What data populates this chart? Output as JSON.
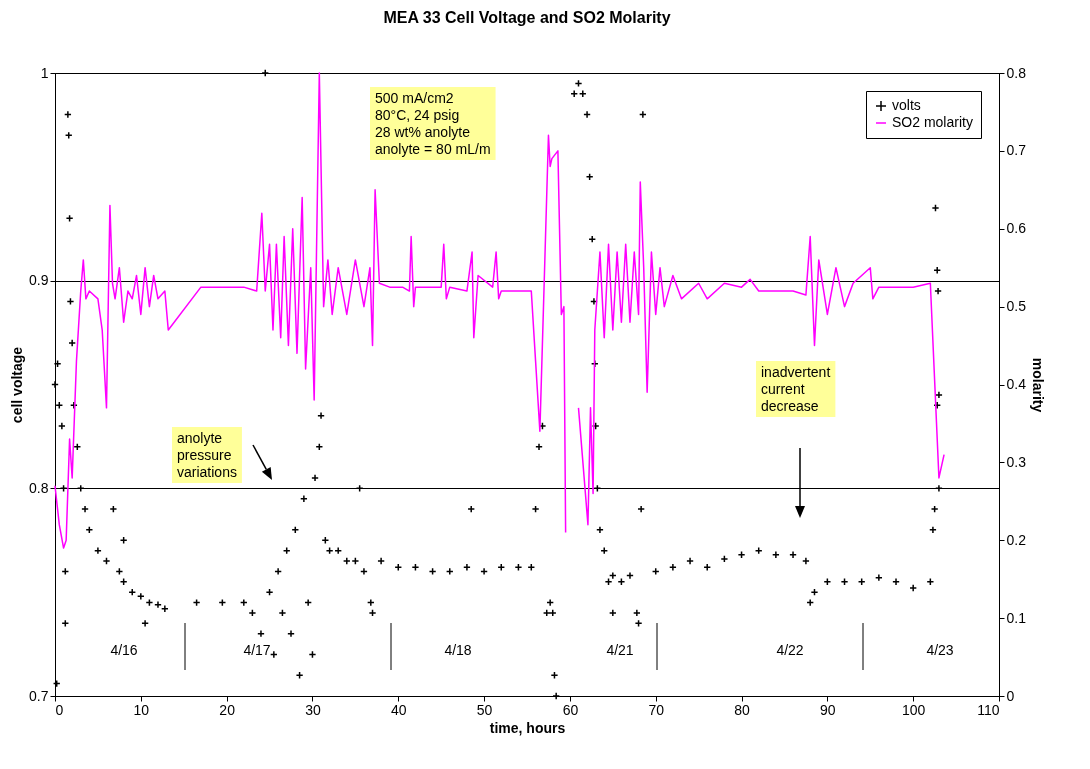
{
  "chart_data": {
    "type": "scatter",
    "title": "MEA 33 Cell Voltage and SO2 Molarity",
    "xlabel": "time, hours",
    "ylabel": "cell voltage",
    "y2label": "molarity",
    "xlim": [
      0,
      110
    ],
    "xticks": [
      0,
      10,
      20,
      30,
      40,
      50,
      60,
      70,
      80,
      90,
      100,
      110
    ],
    "ylim": [
      0.7,
      1
    ],
    "yticks": [
      0.7,
      0.8,
      0.9,
      1
    ],
    "y2lim": [
      0,
      0.8
    ],
    "y2ticks": [
      0,
      0.1,
      0.2,
      0.3,
      0.4,
      0.5,
      0.6,
      0.7,
      0.8
    ],
    "grid": "y",
    "legend": "top right",
    "series": [
      {
        "name": "volts",
        "marker": "cross",
        "color": "#000000",
        "x": [
          0.2,
          0,
          0.3,
          0.5,
          0.8,
          1.0,
          1.2,
          1.2,
          1.5,
          1.6,
          1.7,
          1.8,
          2.0,
          2.2,
          2.6,
          3,
          3.5,
          4,
          5,
          6,
          6.8,
          7.5,
          8,
          8,
          9,
          10,
          10.5,
          11,
          12,
          12.8,
          16.5,
          19.5,
          22,
          23,
          24,
          24.5,
          25,
          25.5,
          26,
          26.5,
          27,
          27.5,
          28,
          28.5,
          29,
          29.5,
          30,
          30.3,
          30.8,
          31,
          31.5,
          32,
          33,
          34,
          35,
          35.5,
          36,
          36.8,
          37,
          38,
          40,
          42,
          44,
          46,
          48,
          48.5,
          50,
          52,
          54,
          55.5,
          56,
          56.4,
          56.8,
          57.3,
          57.7,
          58,
          58.2,
          58.4,
          60.5,
          61,
          61.5,
          62,
          62.3,
          62.6,
          62.8,
          62.9,
          63,
          63.2,
          63.5,
          64,
          64.5,
          65,
          65,
          66,
          67,
          67.8,
          68,
          68.3,
          68.5,
          70,
          72,
          74,
          76,
          78,
          80,
          82,
          84,
          86,
          87.5,
          88,
          88.5,
          90,
          92,
          94,
          96,
          98,
          100,
          102,
          102.3,
          102.5,
          102.6,
          102.8,
          102.8,
          102.9,
          103,
          103
        ],
        "values": [
          0.706,
          0.85,
          0.86,
          0.84,
          0.83,
          0.8,
          0.76,
          0.735,
          0.98,
          0.97,
          0.93,
          0.89,
          0.87,
          0.84,
          0.82,
          0.8,
          0.79,
          0.78,
          0.77,
          0.765,
          0.79,
          0.76,
          0.755,
          0.775,
          0.75,
          0.748,
          0.735,
          0.745,
          0.744,
          0.742,
          0.745,
          0.745,
          0.745,
          0.74,
          0.73,
          1.0,
          0.75,
          0.72,
          0.76,
          0.74,
          0.77,
          0.73,
          0.78,
          0.71,
          0.795,
          0.745,
          0.72,
          0.805,
          0.82,
          0.835,
          0.775,
          0.77,
          0.77,
          0.765,
          0.765,
          0.8,
          0.76,
          0.745,
          0.74,
          0.765,
          0.762,
          0.762,
          0.76,
          0.76,
          0.762,
          0.79,
          0.76,
          0.762,
          0.762,
          0.762,
          0.79,
          0.82,
          0.83,
          0.74,
          0.745,
          0.74,
          0.71,
          0.7,
          0.99,
          0.995,
          0.99,
          0.98,
          0.95,
          0.92,
          0.89,
          0.86,
          0.83,
          0.8,
          0.78,
          0.77,
          0.755,
          0.758,
          0.74,
          0.755,
          0.758,
          0.74,
          0.735,
          0.79,
          0.98,
          0.76,
          0.762,
          0.765,
          0.762,
          0.766,
          0.768,
          0.77,
          0.768,
          0.768,
          0.765,
          0.745,
          0.75,
          0.755,
          0.755,
          0.755,
          0.757,
          0.755,
          0.752,
          0.755,
          0.78,
          0.79,
          0.935,
          0.84,
          0.905,
          0.895,
          0.845,
          0.8
        ]
      },
      {
        "name": "SO2 molarity",
        "type": "line",
        "axis": "y2",
        "color": "#ff00ff",
        "x": [
          0,
          0.5,
          1.0,
          1.3,
          1.7,
          2.0,
          2.5,
          3.0,
          3.3,
          3.6,
          4.0,
          5.0,
          5.5,
          6.0,
          6.2,
          6.4,
          6.7,
          7.0,
          7.5,
          8.0,
          8.5,
          9.0,
          9.5,
          10,
          10.5,
          11,
          11.5,
          12,
          12.8,
          13.2,
          17,
          22,
          23.5,
          24.1,
          24.5,
          25,
          25.4,
          25.8,
          26.3,
          26.7,
          27.2,
          27.7,
          28.2,
          28.8,
          29.2,
          29.8,
          30.2,
          30.8,
          31.3,
          31.8,
          32.3,
          33,
          34,
          35,
          36,
          36.7,
          37,
          37.3,
          37.8,
          39,
          40.5,
          41.3,
          41.5,
          41.8,
          42,
          45,
          45.3,
          45.6,
          46,
          48,
          48.6,
          48.8,
          49.3,
          51,
          51.4,
          51.7,
          52,
          55.5,
          56,
          56.5,
          57.5,
          57.7,
          57.9,
          58.6,
          59.0,
          59.3,
          59.5,
          60.3,
          61.0,
          62.1,
          62.4,
          62.7,
          62.9,
          63.2,
          63.5,
          64.0,
          64.5,
          65.0,
          65.5,
          66.0,
          66.5,
          67.0,
          67.5,
          68.0,
          68.2,
          68.6,
          69.0,
          69.5,
          70.0,
          70.5,
          71.0,
          72.0,
          73.0,
          75.0,
          76.0,
          78.0,
          80.0,
          81.0,
          82.0,
          86.0,
          87.5,
          88.0,
          88.5,
          89.0,
          90.0,
          91.0,
          92.0,
          93.0,
          95.0,
          95.3,
          96.0,
          100.0,
          102.0,
          103.0,
          103.6
        ],
        "values": [
          0.27,
          0.22,
          0.19,
          0.2,
          0.33,
          0.28,
          0.43,
          0.52,
          0.56,
          0.51,
          0.52,
          0.51,
          0.47,
          0.37,
          0.5,
          0.63,
          0.53,
          0.51,
          0.55,
          0.48,
          0.52,
          0.51,
          0.54,
          0.49,
          0.55,
          0.5,
          0.54,
          0.51,
          0.52,
          0.47,
          0.525,
          0.525,
          0.52,
          0.62,
          0.52,
          0.58,
          0.47,
          0.58,
          0.46,
          0.59,
          0.45,
          0.6,
          0.44,
          0.64,
          0.42,
          0.55,
          0.38,
          0.8,
          0.5,
          0.56,
          0.49,
          0.55,
          0.49,
          0.56,
          0.5,
          0.55,
          0.45,
          0.65,
          0.53,
          0.525,
          0.525,
          0.52,
          0.59,
          0.5,
          0.525,
          0.525,
          0.58,
          0.51,
          0.525,
          0.52,
          0.57,
          0.46,
          0.54,
          0.525,
          0.57,
          0.51,
          0.52,
          0.52,
          0.43,
          0.34,
          0.72,
          0.68,
          0.69,
          0.7,
          0.49,
          0.5,
          0.21,
          null,
          0.37,
          0.22,
          0.37,
          0.26,
          0.47,
          0.52,
          0.57,
          0.46,
          0.58,
          0.47,
          0.57,
          0.48,
          0.58,
          0.48,
          0.57,
          0.49,
          0.66,
          0.55,
          0.39,
          0.57,
          0.49,
          0.55,
          0.5,
          0.54,
          0.51,
          0.53,
          0.51,
          0.53,
          0.525,
          0.535,
          0.52,
          0.52,
          0.515,
          0.59,
          0.45,
          0.56,
          0.49,
          0.55,
          0.5,
          0.53,
          0.55,
          0.51,
          0.525,
          0.525,
          0.53,
          0.28,
          0.31
        ]
      }
    ],
    "annotations": [
      "500 mA/cm2\n80°C, 24 psig\n28 wt% anolyte\nanolyte = 80 mL/m",
      "anolyte\npressure\nvariations",
      "inadvertent\ncurrent\ndecrease",
      "4/16",
      "4/17",
      "4/18",
      "4/21",
      "4/22",
      "4/23"
    ]
  }
}
